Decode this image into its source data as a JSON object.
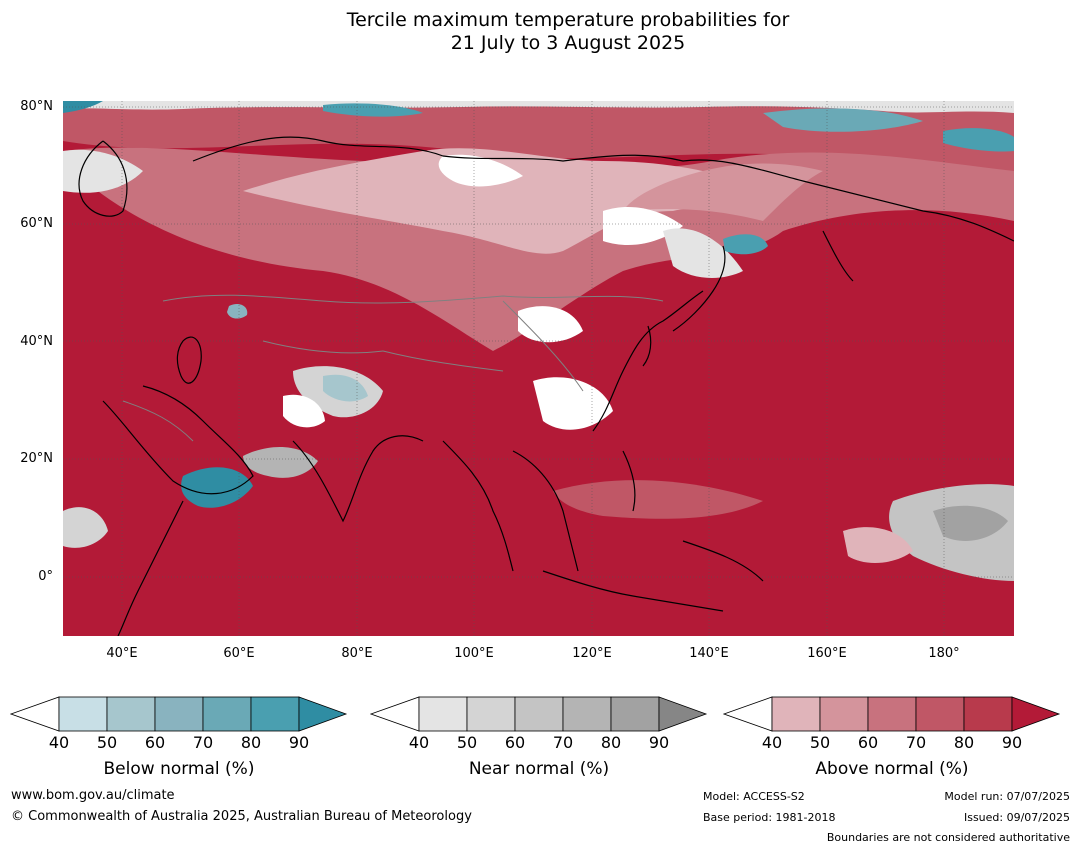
{
  "title": {
    "line1": "Tercile maximum temperature probabilities for",
    "line2": "21 July to 3 August 2025"
  },
  "lat_labels": [
    "80°N",
    "60°N",
    "40°N",
    "20°N",
    "0°"
  ],
  "lon_labels": [
    "40°E",
    "60°E",
    "80°E",
    "100°E",
    "120°E",
    "140°E",
    "160°E",
    "180°"
  ],
  "colorbars": [
    {
      "title": "Below normal (%)",
      "ticks": [
        "40",
        "50",
        "60",
        "70",
        "80",
        "90"
      ],
      "colors": [
        "#c8dfe6",
        "#a6c6cd",
        "#89b3bf",
        "#6aa9b6",
        "#4a9fb0",
        "#2f8da3"
      ]
    },
    {
      "title": "Near normal (%)",
      "ticks": [
        "40",
        "50",
        "60",
        "70",
        "80",
        "90"
      ],
      "colors": [
        "#e4e4e4",
        "#d4d4d4",
        "#c4c4c4",
        "#b4b4b4",
        "#a2a2a2",
        "#868686"
      ]
    },
    {
      "title": "Above normal (%)",
      "ticks": [
        "40",
        "50",
        "60",
        "70",
        "80",
        "90"
      ],
      "colors": [
        "#e0b4ba",
        "#d4949c",
        "#c8727e",
        "#c05766",
        "#b83a4c",
        "#b31a37"
      ]
    }
  ],
  "footer": {
    "website": "www.bom.gov.au/climate",
    "copyright": "© Commonwealth of Australia 2025, Australian Bureau of Meteorology",
    "model": "Model: ACCESS-S2",
    "base_period": "Base period: 1981-2018",
    "model_run": "Model run: 07/07/2025",
    "issued": "Issued: 09/07/2025",
    "disclaimer": "Boundaries are not considered authoritative"
  }
}
